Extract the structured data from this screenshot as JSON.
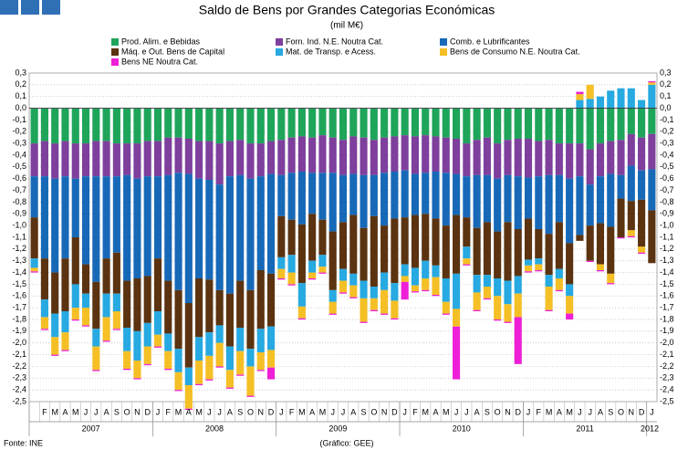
{
  "chart_data": {
    "type": "bar",
    "stacked": true,
    "title": "Saldo de Bens por Grandes Categorias Económicas",
    "subtitle": "(mil M€)",
    "source": "Fonte: INE",
    "credit": "(Gráfico: GEE)",
    "categories": [
      null,
      "F",
      "M",
      "A",
      "M",
      "J",
      "J",
      "A",
      "S",
      "O",
      "N",
      "D",
      "J",
      "F",
      "M",
      "A",
      "M",
      "J",
      "J",
      "A",
      "S",
      "O",
      "N",
      "D",
      "J",
      "F",
      "M",
      "A",
      "M",
      "J",
      "J",
      "A",
      "S",
      "O",
      "N",
      "D",
      "J",
      "F",
      "M",
      "A",
      "M",
      "J",
      "J",
      "A",
      "S",
      "O",
      "N",
      "D",
      "J",
      "F",
      "M",
      "A",
      "M",
      "J",
      "J",
      "A",
      "S",
      "O",
      "N",
      "D",
      "J"
    ],
    "year_labels": [
      "2007",
      "2008",
      "2009",
      "2010",
      "2011",
      "2012"
    ],
    "series": [
      {
        "name": "Prod. Alim. e Bebidas",
        "color": "#1fa55a",
        "values": [
          -0.3,
          -0.28,
          -0.3,
          -0.28,
          -0.3,
          -0.3,
          -0.28,
          -0.28,
          -0.3,
          -0.3,
          -0.3,
          -0.28,
          -0.28,
          -0.25,
          -0.25,
          -0.26,
          -0.28,
          -0.28,
          -0.3,
          -0.28,
          -0.27,
          -0.3,
          -0.3,
          -0.28,
          -0.27,
          -0.25,
          -0.24,
          -0.25,
          -0.23,
          -0.25,
          -0.27,
          -0.24,
          -0.25,
          -0.27,
          -0.25,
          -0.24,
          -0.23,
          -0.24,
          -0.23,
          -0.24,
          -0.25,
          -0.26,
          -0.3,
          -0.27,
          -0.25,
          -0.3,
          -0.27,
          -0.26,
          -0.26,
          -0.28,
          -0.27,
          -0.3,
          -0.3,
          -0.3,
          -0.35,
          -0.3,
          -0.28,
          -0.27,
          -0.22,
          -0.25,
          -0.22
        ]
      },
      {
        "name": "Forn. Ind. N.E. Noutra Cat.",
        "color": "#7e3f9d",
        "values": [
          -0.28,
          -0.3,
          -0.3,
          -0.3,
          -0.3,
          -0.28,
          -0.3,
          -0.3,
          -0.28,
          -0.27,
          -0.3,
          -0.3,
          -0.3,
          -0.32,
          -0.3,
          -0.3,
          -0.32,
          -0.33,
          -0.35,
          -0.3,
          -0.3,
          -0.3,
          -0.28,
          -0.28,
          -0.3,
          -0.3,
          -0.3,
          -0.3,
          -0.32,
          -0.3,
          -0.3,
          -0.32,
          -0.32,
          -0.3,
          -0.3,
          -0.3,
          -0.3,
          -0.32,
          -0.32,
          -0.3,
          -0.3,
          -0.3,
          -0.28,
          -0.3,
          -0.32,
          -0.3,
          -0.3,
          -0.32,
          -0.33,
          -0.3,
          -0.3,
          -0.27,
          -0.3,
          -0.28,
          -0.3,
          -0.28,
          -0.28,
          -0.3,
          -0.27,
          -0.28,
          -0.3
        ]
      },
      {
        "name": "Comb. e Lubrificantes",
        "color": "#1769b8",
        "values": [
          -0.35,
          -0.7,
          -0.8,
          -0.7,
          -0.5,
          -0.75,
          -0.9,
          -0.7,
          -0.65,
          -0.9,
          -0.85,
          -0.85,
          -0.7,
          -0.9,
          -1.0,
          -1.1,
          -0.85,
          -0.85,
          -0.9,
          -1.0,
          -0.9,
          -0.95,
          -0.8,
          -0.85,
          -0.35,
          -0.4,
          -0.45,
          -0.35,
          -0.4,
          -0.5,
          -0.4,
          -0.35,
          -0.45,
          -0.35,
          -0.45,
          -0.4,
          -0.4,
          -0.35,
          -0.35,
          -0.4,
          -0.45,
          -0.35,
          -0.35,
          -0.45,
          -0.4,
          -0.45,
          -0.4,
          -0.45,
          -0.35,
          -0.45,
          -0.5,
          -0.4,
          -0.55,
          -0.5,
          -0.35,
          -0.4,
          -0.45,
          -0.2,
          -0.3,
          -0.25,
          -0.35
        ]
      },
      {
        "name": "Máq. e Out. Bens de Capital",
        "color": "#5b3310",
        "values": [
          -0.35,
          -0.35,
          -0.35,
          -0.45,
          -0.4,
          -0.25,
          -0.4,
          -0.3,
          -0.35,
          -0.4,
          -0.45,
          -0.4,
          -0.45,
          -0.45,
          -0.5,
          -0.55,
          -0.5,
          -0.45,
          -0.3,
          -0.45,
          -0.4,
          -0.5,
          -0.5,
          -0.45,
          -0.35,
          -0.3,
          -0.5,
          -0.4,
          -0.3,
          -0.5,
          -0.4,
          -0.5,
          -0.45,
          -0.6,
          -0.4,
          -0.55,
          -0.4,
          -0.45,
          -0.4,
          -0.4,
          -0.45,
          -0.5,
          -0.25,
          -0.4,
          -0.45,
          -0.4,
          -0.5,
          -0.4,
          -0.35,
          -0.25,
          -0.35,
          -0.4,
          -0.35,
          -0.05,
          -0.3,
          -0.35,
          -0.4,
          -0.33,
          -0.25,
          -0.4,
          -0.45
        ]
      },
      {
        "name": "Mat. de Transp. e Acess.",
        "color": "#27a9e1",
        "values": [
          -0.08,
          -0.15,
          -0.2,
          -0.18,
          -0.2,
          -0.12,
          -0.15,
          -0.2,
          -0.15,
          -0.2,
          -0.25,
          -0.2,
          -0.2,
          -0.15,
          -0.2,
          -0.15,
          -0.2,
          -0.2,
          -0.15,
          -0.2,
          -0.2,
          -0.15,
          -0.2,
          -0.2,
          -0.1,
          -0.15,
          -0.2,
          -0.1,
          -0.1,
          -0.1,
          -0.1,
          -0.1,
          -0.15,
          -0.1,
          -0.15,
          -0.15,
          -0.1,
          -0.15,
          -0.15,
          -0.1,
          -0.2,
          -0.3,
          -0.1,
          -0.15,
          -0.1,
          -0.15,
          -0.2,
          -0.15,
          -0.05,
          -0.05,
          -0.1,
          -0.08,
          -0.1,
          0.07,
          0.08,
          0.1,
          0.15,
          0.17,
          0.17,
          0.07,
          0.2
        ]
      },
      {
        "name": "Bens de Consumo N.E. Noutra Cat.",
        "color": "#f5bf26",
        "values": [
          -0.03,
          -0.1,
          -0.15,
          -0.15,
          -0.1,
          -0.15,
          -0.2,
          -0.2,
          -0.15,
          -0.15,
          -0.15,
          -0.15,
          -0.1,
          -0.15,
          -0.15,
          -0.2,
          -0.2,
          -0.2,
          -0.2,
          -0.15,
          -0.2,
          -0.25,
          -0.15,
          -0.15,
          -0.08,
          -0.1,
          -0.1,
          -0.05,
          -0.05,
          -0.1,
          -0.1,
          -0.1,
          -0.2,
          -0.1,
          -0.2,
          -0.15,
          -0.05,
          -0.05,
          -0.1,
          -0.15,
          -0.1,
          -0.15,
          -0.05,
          -0.15,
          -0.1,
          -0.2,
          -0.15,
          -0.2,
          -0.05,
          -0.05,
          -0.2,
          -0.1,
          -0.15,
          0.05,
          0.12,
          -0.05,
          -0.08,
          0,
          -0.05,
          -0.05,
          0.02
        ]
      },
      {
        "name": "Bens NE Noutra Cat.",
        "color": "#ee1fd6",
        "values": [
          -0.01,
          -0.01,
          -0.01,
          -0.01,
          -0.01,
          -0.01,
          -0.01,
          -0.01,
          -0.01,
          -0.01,
          -0.01,
          -0.01,
          -0.01,
          -0.01,
          -0.01,
          -0.01,
          -0.01,
          -0.01,
          -0.01,
          -0.01,
          -0.01,
          -0.01,
          -0.01,
          -0.1,
          -0.01,
          -0.01,
          -0.01,
          -0.01,
          -0.01,
          -0.01,
          -0.01,
          -0.01,
          -0.01,
          -0.01,
          -0.01,
          -0.01,
          -0.15,
          -0.01,
          -0.01,
          -0.01,
          -0.01,
          -0.45,
          -0.01,
          -0.01,
          -0.01,
          -0.01,
          -0.01,
          -0.4,
          -0.01,
          -0.01,
          -0.01,
          -0.01,
          -0.05,
          0.02,
          -0.01,
          -0.01,
          -0.01,
          -0.01,
          -0.01,
          -0.01,
          0.01
        ]
      }
    ],
    "ylim": [
      -2.5,
      0.3
    ],
    "yticks": [
      {
        "value": 0.3,
        "label": "0,3"
      },
      {
        "value": 0.2,
        "label": "0,2"
      },
      {
        "value": 0.1,
        "label": "0,1"
      },
      {
        "value": 0,
        "label": "0,0"
      },
      {
        "value": -0.1,
        "label": "-0,1"
      },
      {
        "value": -0.2,
        "label": "-0,2"
      },
      {
        "value": -0.3,
        "label": "-0,3"
      },
      {
        "value": -0.4,
        "label": "-0,4"
      },
      {
        "value": -0.5,
        "label": "-0,5"
      },
      {
        "value": -0.6,
        "label": "-0,6"
      },
      {
        "value": -0.7,
        "label": "-0,7"
      },
      {
        "value": -0.8,
        "label": "-0,8"
      },
      {
        "value": -0.9,
        "label": "-0,9"
      },
      {
        "value": -1,
        "label": "-1,0"
      },
      {
        "value": -1.1,
        "label": "-1,1"
      },
      {
        "value": -1.2,
        "label": "-1,2"
      },
      {
        "value": -1.3,
        "label": "-1,3"
      },
      {
        "value": -1.4,
        "label": "-1,4"
      },
      {
        "value": -1.5,
        "label": "-1,5"
      },
      {
        "value": -1.6,
        "label": "-1,6"
      },
      {
        "value": -1.7,
        "label": "-1,7"
      },
      {
        "value": -1.8,
        "label": "-1,8"
      },
      {
        "value": -1.9,
        "label": "-1,9"
      },
      {
        "value": -2,
        "label": "-2,0"
      },
      {
        "value": -2.1,
        "label": "-2,1"
      },
      {
        "value": -2.2,
        "label": "-2,2"
      },
      {
        "value": -2.3,
        "label": "-2,3"
      },
      {
        "value": -2.4,
        "label": "-2,4"
      },
      {
        "value": -2.5,
        "label": "-2,5"
      }
    ],
    "grid": true
  }
}
